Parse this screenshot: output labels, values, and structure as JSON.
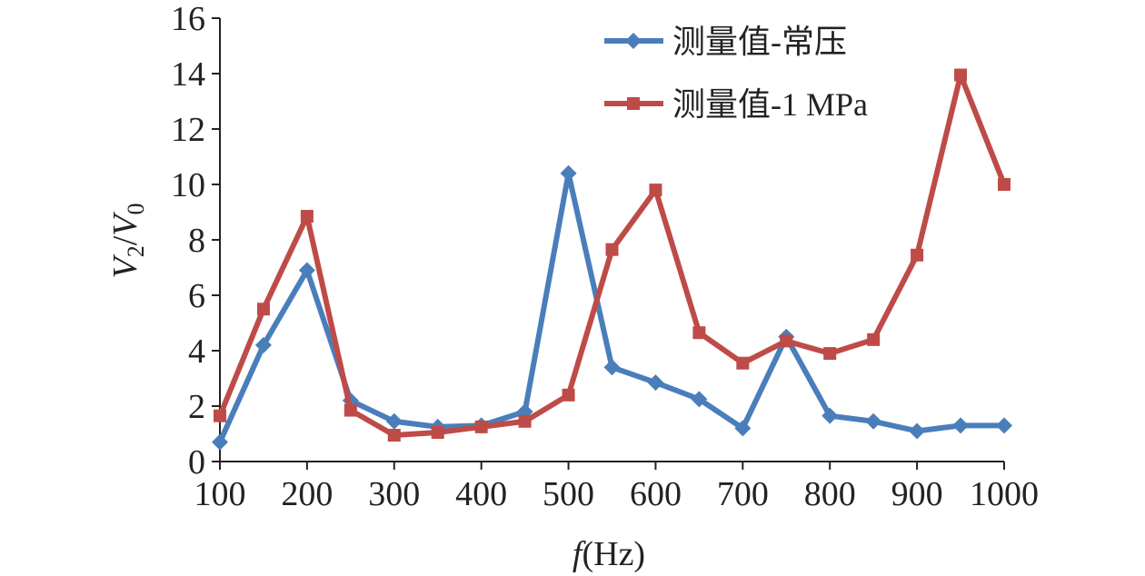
{
  "chart_data": {
    "type": "line",
    "title": "",
    "xlabel_italic": "f",
    "xlabel_unit": "(Hz)",
    "ylabel_v": "V",
    "ylabel_sub2": "2",
    "ylabel_slash": "/",
    "ylabel_sub0": "0",
    "x": [
      100,
      150,
      200,
      250,
      300,
      350,
      400,
      450,
      500,
      550,
      600,
      650,
      700,
      750,
      800,
      850,
      900,
      950,
      1000
    ],
    "xticks": [
      100,
      200,
      300,
      400,
      500,
      600,
      700,
      800,
      900,
      1000
    ],
    "yticks": [
      0,
      2,
      4,
      6,
      8,
      10,
      12,
      14,
      16
    ],
    "xlim": [
      100,
      1000
    ],
    "ylim": [
      0,
      16
    ],
    "grid": false,
    "legend_position": "top-right",
    "series": [
      {
        "name": "测量值-常压",
        "color": "#4a7ebb",
        "marker": "diamond",
        "values": [
          0.7,
          4.2,
          6.9,
          2.2,
          1.45,
          1.25,
          1.3,
          1.8,
          10.4,
          3.4,
          2.85,
          2.25,
          1.2,
          4.5,
          1.65,
          1.45,
          1.1,
          1.3,
          1.3
        ]
      },
      {
        "name": "测量值-1 MPa",
        "color": "#be4b48",
        "marker": "square",
        "values": [
          1.65,
          5.5,
          8.85,
          1.85,
          0.95,
          1.05,
          1.25,
          1.45,
          2.4,
          7.65,
          9.8,
          4.65,
          3.55,
          4.35,
          3.9,
          4.4,
          7.45,
          13.95,
          10.0
        ]
      }
    ]
  }
}
